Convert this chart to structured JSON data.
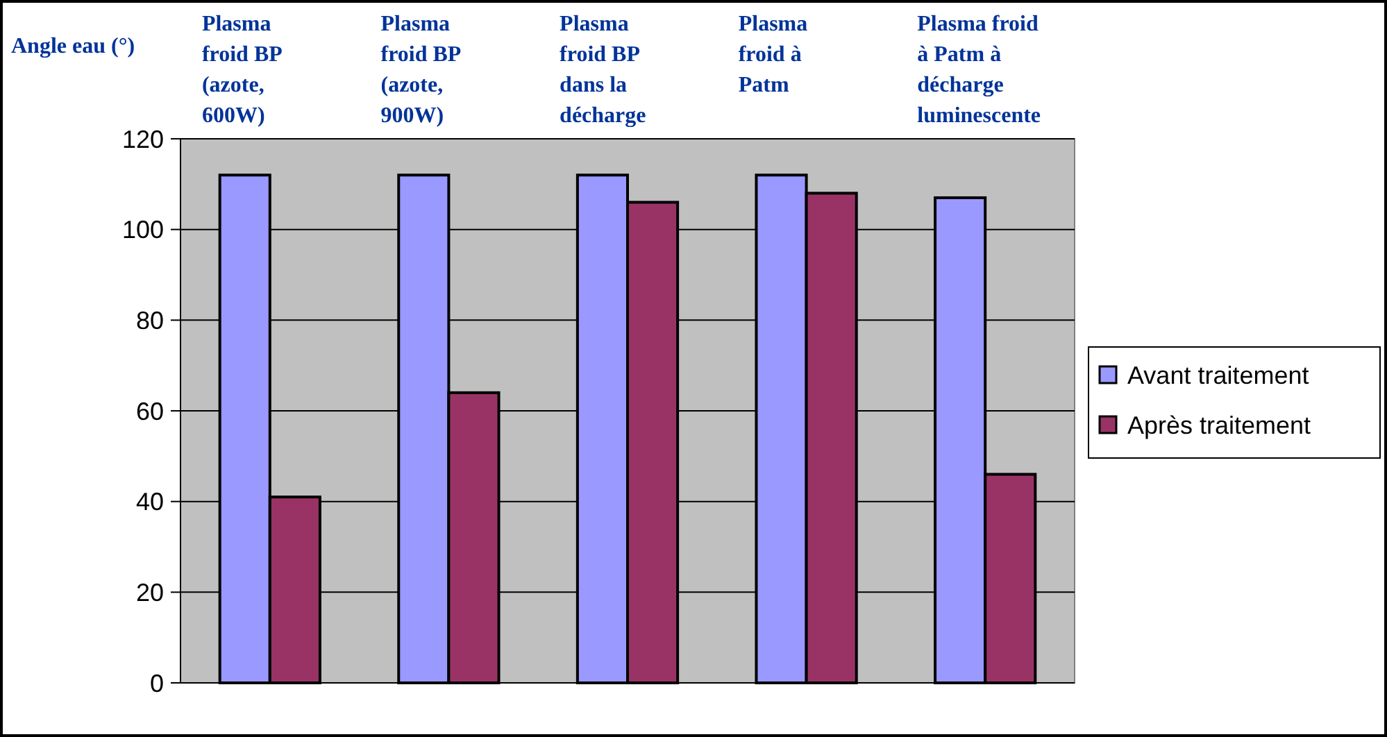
{
  "chart_data": {
    "type": "bar",
    "ylabel": "Angle eau (°)",
    "categories": [
      "Plasma froid BP (azote, 600W)",
      "Plasma froid BP (azote, 900W)",
      "Plasma froid BP dans la décharge",
      "Plasma froid à Patm",
      "Plasma froid à Patm à décharge luminescente"
    ],
    "series": [
      {
        "name": "Avant traitement",
        "color": "#9999ff",
        "values": [
          112,
          112,
          112,
          112,
          107
        ]
      },
      {
        "name": "Après traitement",
        "color": "#993366",
        "values": [
          41,
          64,
          106,
          108,
          46
        ]
      }
    ],
    "ylim": [
      0,
      120
    ],
    "yticks": [
      0,
      20,
      40,
      60,
      80,
      100,
      120
    ],
    "grid": "y",
    "legend": "right"
  }
}
